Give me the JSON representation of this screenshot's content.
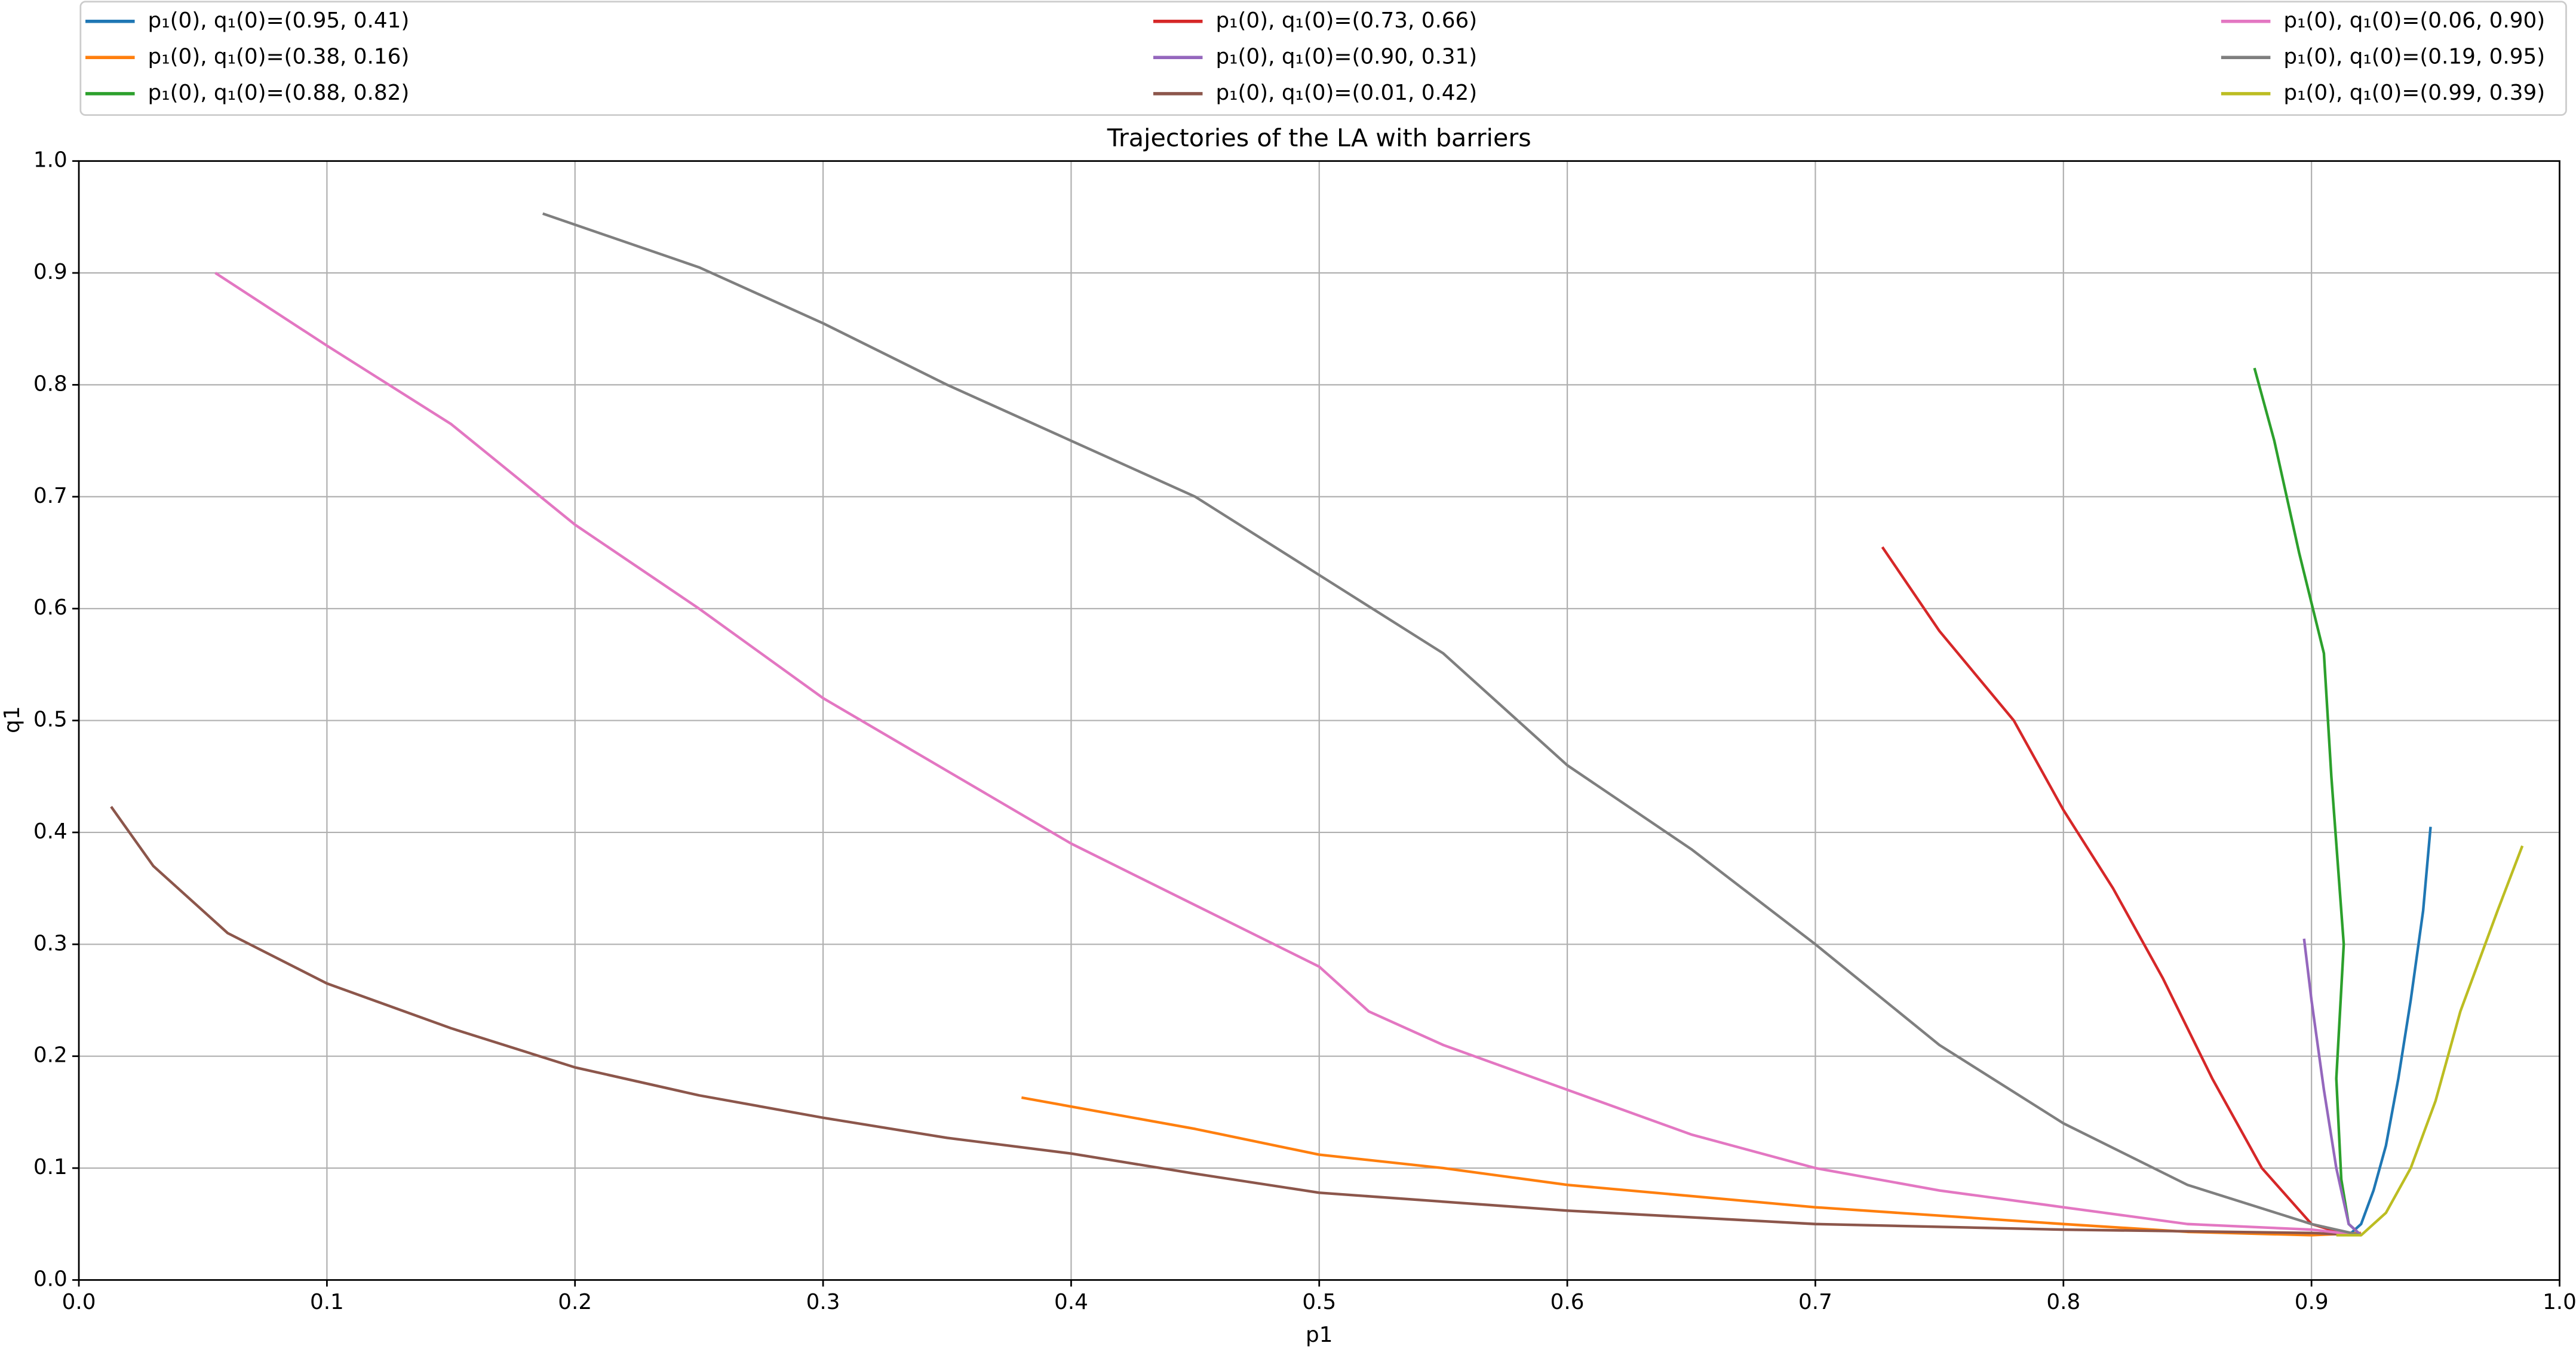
{
  "chart_data": {
    "type": "line",
    "title": "Trajectories of the LA with barriers",
    "xlabel": "p1",
    "ylabel": "q1",
    "xlim": [
      0,
      1
    ],
    "ylim": [
      0,
      1
    ],
    "xticks": [
      {
        "value": 0,
        "label": "0.0"
      },
      0.1,
      0.2,
      0.3,
      0.4,
      0.5,
      0.6,
      0.7,
      0.8,
      0.9,
      {
        "value": 1,
        "label": "1.0"
      }
    ],
    "yticks": [
      {
        "value": 0,
        "label": "0.0"
      },
      0.1,
      0.2,
      0.3,
      0.4,
      0.5,
      0.6,
      0.7,
      0.8,
      0.9,
      {
        "value": 1,
        "label": "1.0"
      }
    ],
    "grid": true,
    "legend": "top",
    "legend_columns": 3,
    "series": [
      {
        "name": "p₁(0), q₁(0)=(0.95, 0.41)",
        "color": "#1f77b4",
        "x": [
          0.948,
          0.945,
          0.94,
          0.935,
          0.93,
          0.925,
          0.92,
          0.915
        ],
        "values": [
          0.405,
          0.33,
          0.25,
          0.18,
          0.12,
          0.08,
          0.05,
          0.04
        ]
      },
      {
        "name": "p₁(0), q₁(0)=(0.38, 0.16)",
        "color": "#ff7f0e",
        "x": [
          0.38,
          0.45,
          0.5,
          0.55,
          0.6,
          0.7,
          0.8,
          0.85,
          0.9,
          0.92
        ],
        "values": [
          0.163,
          0.135,
          0.112,
          0.1,
          0.085,
          0.065,
          0.05,
          0.043,
          0.04,
          0.042
        ]
      },
      {
        "name": "p₁(0), q₁(0)=(0.88, 0.82)",
        "color": "#2ca02c",
        "x": [
          0.877,
          0.885,
          0.895,
          0.905,
          0.908,
          0.913,
          0.91,
          0.912,
          0.915,
          0.92
        ],
        "values": [
          0.815,
          0.75,
          0.65,
          0.56,
          0.45,
          0.3,
          0.18,
          0.09,
          0.05,
          0.04
        ]
      },
      {
        "name": "p₁(0), q₁(0)=(0.73, 0.66)",
        "color": "#d62728",
        "x": [
          0.727,
          0.75,
          0.78,
          0.8,
          0.82,
          0.84,
          0.86,
          0.88,
          0.9,
          0.915
        ],
        "values": [
          0.655,
          0.58,
          0.5,
          0.42,
          0.35,
          0.27,
          0.18,
          0.1,
          0.05,
          0.04
        ]
      },
      {
        "name": "p₁(0), q₁(0)=(0.90, 0.31)",
        "color": "#9467bd",
        "x": [
          0.897,
          0.9,
          0.905,
          0.91,
          0.915,
          0.92
        ],
        "values": [
          0.305,
          0.25,
          0.17,
          0.1,
          0.05,
          0.04
        ]
      },
      {
        "name": "p₁(0), q₁(0)=(0.01, 0.42)",
        "color": "#8c564b",
        "x": [
          0.013,
          0.03,
          0.06,
          0.1,
          0.15,
          0.2,
          0.25,
          0.3,
          0.35,
          0.4,
          0.45,
          0.5,
          0.6,
          0.7,
          0.8,
          0.9,
          0.92
        ],
        "values": [
          0.423,
          0.37,
          0.31,
          0.265,
          0.225,
          0.19,
          0.165,
          0.145,
          0.127,
          0.113,
          0.095,
          0.078,
          0.062,
          0.05,
          0.045,
          0.042,
          0.04
        ]
      },
      {
        "name": "p₁(0), q₁(0)=(0.06, 0.90)",
        "color": "#e377c2",
        "x": [
          0.055,
          0.1,
          0.15,
          0.2,
          0.25,
          0.3,
          0.35,
          0.4,
          0.45,
          0.5,
          0.52,
          0.55,
          0.6,
          0.65,
          0.7,
          0.75,
          0.8,
          0.85,
          0.9,
          0.92
        ],
        "values": [
          0.9,
          0.835,
          0.765,
          0.675,
          0.6,
          0.52,
          0.455,
          0.39,
          0.335,
          0.28,
          0.24,
          0.21,
          0.17,
          0.13,
          0.1,
          0.08,
          0.065,
          0.05,
          0.045,
          0.04
        ]
      },
      {
        "name": "p₁(0), q₁(0)=(0.19, 0.95)",
        "color": "#7f7f7f",
        "x": [
          0.187,
          0.25,
          0.3,
          0.35,
          0.4,
          0.45,
          0.5,
          0.55,
          0.6,
          0.65,
          0.7,
          0.75,
          0.8,
          0.85,
          0.9,
          0.92
        ],
        "values": [
          0.953,
          0.905,
          0.855,
          0.8,
          0.75,
          0.7,
          0.63,
          0.56,
          0.46,
          0.385,
          0.3,
          0.21,
          0.14,
          0.085,
          0.05,
          0.04
        ]
      },
      {
        "name": "p₁(0), q₁(0)=(0.99, 0.39)",
        "color": "#bcbd22",
        "x": [
          0.985,
          0.975,
          0.96,
          0.95,
          0.94,
          0.93,
          0.92,
          0.91
        ],
        "values": [
          0.388,
          0.33,
          0.24,
          0.16,
          0.1,
          0.06,
          0.04,
          0.04
        ]
      }
    ]
  }
}
